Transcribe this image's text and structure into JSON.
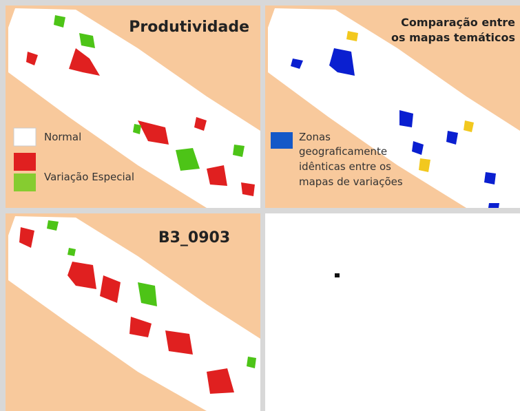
{
  "panels": [
    {
      "title": [
        "Produtividade"
      ],
      "legend": [
        {
          "label": [
            "Normal"
          ]
        },
        {
          "label": [
            "Variação Especial"
          ]
        }
      ]
    },
    {
      "title": [
        "Comparação entre",
        "os mapas temáticos"
      ],
      "legend": [
        {
          "label": [
            "Zonas",
            "geograficamente",
            "idênticas entre os",
            "mapas de variações"
          ]
        }
      ]
    },
    {
      "title": [
        "B3_0903"
      ]
    }
  ]
}
